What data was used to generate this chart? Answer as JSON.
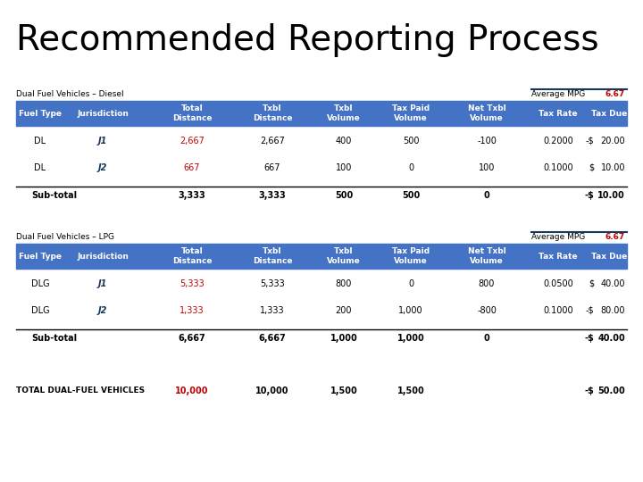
{
  "title": "Recommended Reporting Process",
  "title_fontsize": 28,
  "bg_color": "#ffffff",
  "section1_label": "Dual Fuel Vehicles – Diesel",
  "section2_label": "Dual Fuel Vehicles – LPG",
  "total_label": "TOTAL DUAL-FUEL VEHICLES",
  "avg_mpg_label": "Average MPG",
  "avg_mpg_value": "6.67",
  "avg_mpg_color": "#c00000",
  "header_bg": "#4472c4",
  "header_text_color": "#ffffff",
  "header_cols": [
    "Fuel Type",
    "Jurisdiction",
    "Total\nDistance",
    "Txbl\nDistance",
    "Txbl\nVolume",
    "Tax Paid\nVolume",
    "Net Txbl\nVolume",
    "Tax Rate",
    "Tax Due"
  ],
  "section1_rows": [
    {
      "fuel": "DL",
      "jur": "J1",
      "tot_dist": "2,667",
      "txbl_dist": "2,667",
      "txbl_vol": "400",
      "tax_paid": "500",
      "net_txbl": "-100",
      "tax_rate": "0.2000",
      "sign": "-$",
      "tax_due": "20.00",
      "tot_dist_color": "#c00000",
      "jur_color": "#17375e"
    },
    {
      "fuel": "DL",
      "jur": "J2",
      "tot_dist": "667",
      "txbl_dist": "667",
      "txbl_vol": "100",
      "tax_paid": "0",
      "net_txbl": "100",
      "tax_rate": "0.1000",
      "sign": "$",
      "tax_due": "10.00",
      "tot_dist_color": "#c00000",
      "jur_color": "#17375e"
    }
  ],
  "section1_subtotal": {
    "label": "Sub-total",
    "tot_dist": "3,333",
    "txbl_dist": "3,333",
    "txbl_vol": "500",
    "tax_paid": "500",
    "net_txbl": "0",
    "sign": "-$",
    "tax_due": "10.00"
  },
  "section2_rows": [
    {
      "fuel": "DLG",
      "jur": "J1",
      "tot_dist": "5,333",
      "txbl_dist": "5,333",
      "txbl_vol": "800",
      "tax_paid": "0",
      "net_txbl": "800",
      "tax_rate": "0.0500",
      "sign": "$",
      "tax_due": "40.00",
      "tot_dist_color": "#c00000",
      "jur_color": "#17375e"
    },
    {
      "fuel": "DLG",
      "jur": "J2",
      "tot_dist": "1,333",
      "txbl_dist": "1,333",
      "txbl_vol": "200",
      "tax_paid": "1,000",
      "net_txbl": "-800",
      "tax_rate": "0.1000",
      "sign": "-$",
      "tax_due": "80.00",
      "tot_dist_color": "#c00000",
      "jur_color": "#17375e"
    }
  ],
  "section2_subtotal": {
    "label": "Sub-total",
    "tot_dist": "6,667",
    "txbl_dist": "6,667",
    "txbl_vol": "1,000",
    "tax_paid": "1,000",
    "net_txbl": "0",
    "sign": "-$",
    "tax_due": "40.00"
  },
  "total_row": {
    "tot_dist": "10,000",
    "txbl_dist": "10,000",
    "txbl_vol": "1,500",
    "tax_paid": "1,500",
    "sign": "-$",
    "tax_due": "50.00",
    "tot_dist_color": "#c00000"
  }
}
